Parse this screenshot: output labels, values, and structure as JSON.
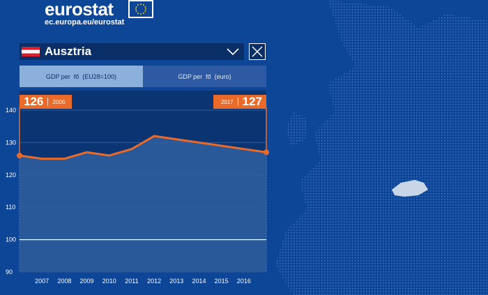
{
  "brand": {
    "name": "eurostat",
    "url": "ec.europa.eu/eurostat"
  },
  "selector": {
    "country": "Ausztria",
    "flag_colors": [
      "#d81e2c",
      "#ffffff",
      "#d81e2c"
    ]
  },
  "tabs": [
    {
      "label": "GDP per  fő  (EU28=100)",
      "active": true
    },
    {
      "label": "GDP per  fő  (euro)",
      "active": false
    }
  ],
  "badges": {
    "start": {
      "value": "126",
      "year": "2006"
    },
    "end": {
      "year": "2017",
      "value": "127"
    }
  },
  "colors": {
    "background": "#0d4597",
    "line": "#ea6a2a",
    "tab_active": "#8bb0dc"
  },
  "chart_data": {
    "type": "line",
    "x": [
      2006,
      2007,
      2008,
      2009,
      2010,
      2011,
      2012,
      2013,
      2014,
      2015,
      2016,
      2017
    ],
    "series": [
      {
        "values": [
          126,
          125,
          125,
          127,
          126,
          128,
          132,
          131,
          130,
          129,
          128,
          127
        ]
      }
    ],
    "xtick_labels": [
      "2007",
      "2008",
      "2009",
      "2010",
      "2011",
      "2012",
      "2013",
      "2014",
      "2015",
      "2016"
    ],
    "yticks": [
      90,
      100,
      110,
      120,
      130,
      140
    ],
    "ylim": [
      90,
      140
    ],
    "reference_line": 100
  }
}
